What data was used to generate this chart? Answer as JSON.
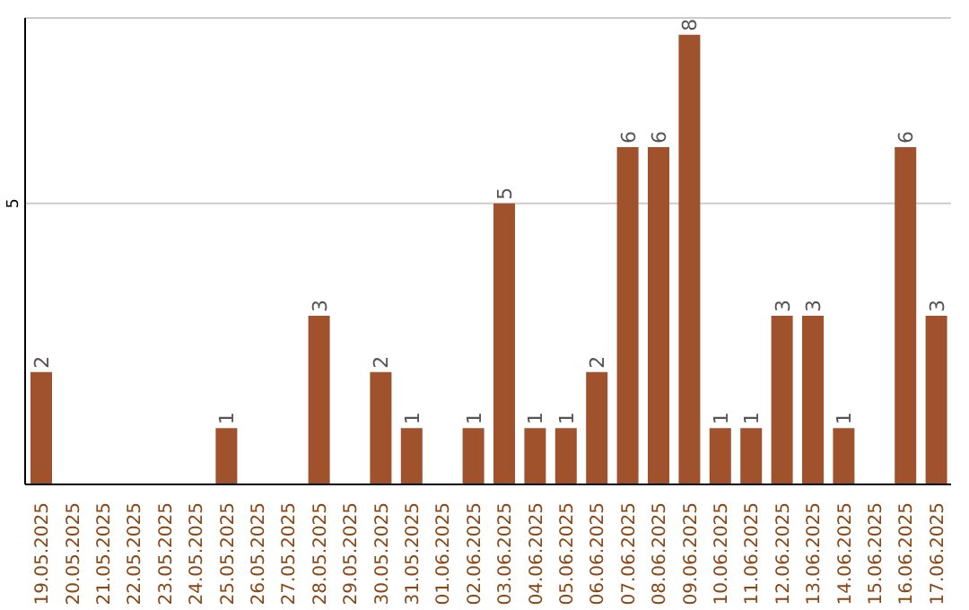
{
  "chart_data": {
    "type": "bar",
    "categories": [
      "19.05.2025",
      "20.05.2025",
      "21.05.2025",
      "22.05.2025",
      "23.05.2025",
      "24.05.2025",
      "25.05.2025",
      "26.05.2025",
      "27.05.2025",
      "28.05.2025",
      "29.05.2025",
      "30.05.2025",
      "31.05.2025",
      "01.06.2025",
      "02.06.2025",
      "03.06.2025",
      "04.06.2025",
      "05.06.2025",
      "06.06.2025",
      "07.06.2025",
      "08.06.2025",
      "09.06.2025",
      "10.06.2025",
      "11.06.2025",
      "12.06.2025",
      "13.06.2025",
      "14.06.2025",
      "15.06.2025",
      "16.06.2025",
      "17.06.2025"
    ],
    "values": [
      2,
      0,
      0,
      0,
      0,
      0,
      1,
      0,
      0,
      3,
      0,
      2,
      1,
      0,
      1,
      5,
      1,
      1,
      2,
      6,
      6,
      8,
      1,
      1,
      3,
      3,
      1,
      0,
      6,
      3
    ],
    "value_labels": [
      "2",
      null,
      null,
      null,
      null,
      null,
      "1",
      null,
      null,
      "3",
      null,
      "2",
      "1",
      null,
      "1",
      "5",
      "1",
      "1",
      "2",
      "6",
      "6",
      "8",
      "1",
      "1",
      "3",
      "3",
      "1",
      null,
      "6",
      "3"
    ],
    "color": "#a0522d",
    "ylim": [
      0,
      8.3
    ],
    "yticks": [
      5
    ],
    "grid": "y"
  }
}
